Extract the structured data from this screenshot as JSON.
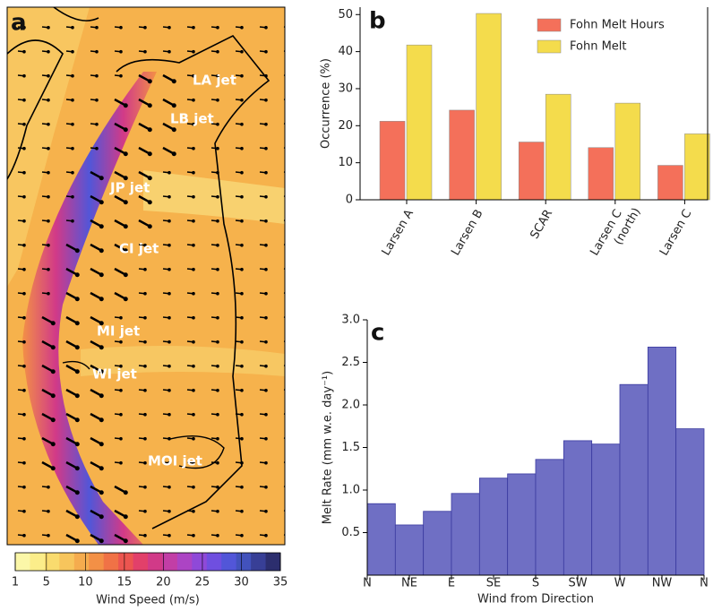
{
  "map": {
    "panel_label": "a",
    "jet_labels": [
      "LA jet",
      "LB jet",
      "JP jet",
      "CI jet",
      "MI jet",
      "WI jet",
      "MOI jet"
    ],
    "colorbar": {
      "label": "Wind Speed (m/s)",
      "lim": [
        1,
        35
      ],
      "ticks": [
        1,
        5,
        10,
        15,
        20,
        25,
        30,
        35
      ],
      "colors": [
        "#fbf7a8",
        "#fbed8a",
        "#f9db6e",
        "#f7c55c",
        "#f5ac4e",
        "#f39046",
        "#f07246",
        "#ec5550",
        "#e2406a",
        "#d13a88",
        "#c23ea6",
        "#ac44c4",
        "#8f49d8",
        "#6f4fe0",
        "#5256d8",
        "#4252bc",
        "#383f96",
        "#2c2e6e"
      ]
    }
  },
  "chart_data": [
    {
      "type": "bar",
      "panel_label": "b",
      "y_label": "Occurrence (%)",
      "categories": [
        "Larsen A",
        "Larsen B",
        "SCAR",
        "Larsen C\n(north)",
        "Larsen C"
      ],
      "series": [
        {
          "name": "Fohn Melt Hours",
          "color": "#f4705a",
          "values": [
            21.2,
            24.2,
            15.6,
            14.1,
            9.3
          ]
        },
        {
          "name": "Fohn Melt",
          "color": "#f4dc4c",
          "values": [
            41.8,
            50.3,
            28.5,
            26.1,
            17.8
          ]
        }
      ],
      "ylim": [
        0,
        52
      ],
      "yticks": [
        0,
        10,
        20,
        30,
        40,
        50
      ],
      "legend": "upper right"
    },
    {
      "type": "histogram",
      "panel_label": "c",
      "y_label": "Melt Rate (mm w.e. day⁻¹)",
      "x_label": "Wind from Direction",
      "bins": [
        0,
        30,
        60,
        90,
        120,
        150,
        180,
        210,
        240,
        270,
        300,
        330,
        360
      ],
      "values": [
        0.84,
        0.59,
        0.75,
        0.96,
        1.14,
        1.19,
        1.36,
        1.58,
        1.54,
        2.24,
        2.68,
        1.72
      ],
      "color": "#6f6fc4",
      "xlim": [
        0,
        360
      ],
      "xticks": [
        {
          "value": 0,
          "label": "N"
        },
        {
          "value": 45,
          "label": "NE"
        },
        {
          "value": 90,
          "label": "E"
        },
        {
          "value": 135,
          "label": "SE"
        },
        {
          "value": 180,
          "label": "S"
        },
        {
          "value": 225,
          "label": "SW"
        },
        {
          "value": 270,
          "label": "W"
        },
        {
          "value": 315,
          "label": "NW"
        },
        {
          "value": 360,
          "label": "N"
        }
      ],
      "ylim": [
        0,
        3
      ],
      "yticks": [
        0.5,
        {
          "value": 1,
          "label": "1.0"
        },
        1.5,
        {
          "value": 2,
          "label": "2.0"
        },
        2.5,
        {
          "value": 3,
          "label": "3.0"
        }
      ]
    }
  ]
}
